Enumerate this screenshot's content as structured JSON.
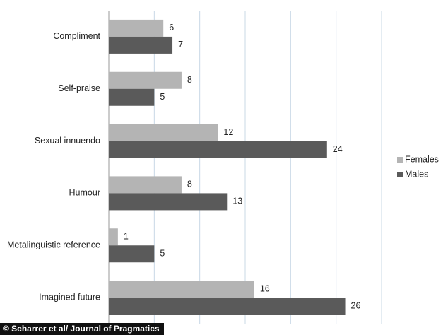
{
  "chart_data": {
    "type": "bar",
    "orientation": "horizontal",
    "categories": [
      "Compliment",
      "Self-praise",
      "Sexual innuendo",
      "Humour",
      "Metalinguistic reference",
      "Imagined future"
    ],
    "series": [
      {
        "name": "Females",
        "color": "#b4b4b4",
        "values": [
          6,
          8,
          12,
          8,
          1,
          16
        ]
      },
      {
        "name": "Males",
        "color": "#5a5a5a",
        "values": [
          7,
          5,
          24,
          13,
          5,
          26
        ]
      }
    ],
    "xlim": [
      0,
      30
    ],
    "xticks": [
      0,
      5,
      10,
      15,
      20,
      25,
      30
    ],
    "grid": true,
    "legend": "right",
    "credit": "© Scharrer et al/ Journal of Pragmatics"
  }
}
